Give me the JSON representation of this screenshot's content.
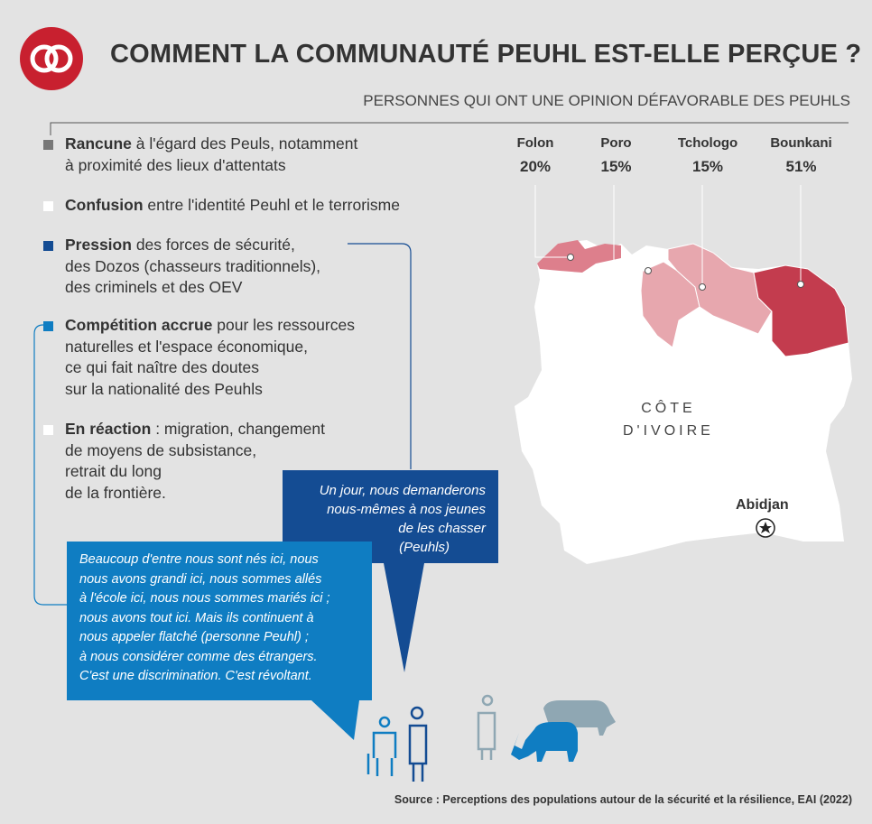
{
  "header": {
    "title": "COMMENT LA COMMUNAUTÉ PEUHL EST-ELLE PERÇUE ?",
    "subtitle": "PERSONNES QUI ONT UNE OPINION DÉFAVORABLE DES PEUHLS"
  },
  "bullets": [
    {
      "bold": "Rancune",
      "rest": "à l'égard des Peuls, notamment",
      "lines": [
        "à proximité des lieux d'attentats"
      ],
      "color": "#777777"
    },
    {
      "bold": "Confusion",
      "rest": "entre l'identité Peuhl et le terrorisme",
      "lines": [],
      "color": "#ffffff"
    },
    {
      "bold": "Pression",
      "rest": "des forces de sécurité,",
      "lines": [
        "des Dozos (chasseurs traditionnels),",
        "des criminels et des OEV"
      ],
      "color": "#144c93"
    },
    {
      "bold": "Compétition accrue",
      "rest": "pour les ressources",
      "lines": [
        "naturelles et l'espace économique,",
        "ce qui fait naître des doutes",
        "sur la nationalité des Peuhls"
      ],
      "color": "#0f7dc2"
    },
    {
      "bold": "En réaction",
      "rest": ": migration, changement",
      "lines": [
        "de moyens de subsistance,",
        "retrait du long",
        "de la frontière."
      ],
      "color": "#ffffff"
    }
  ],
  "regions": [
    {
      "name": "Folon",
      "pct": "20%",
      "color": "#dd7f8c"
    },
    {
      "name": "Poro",
      "pct": "15%",
      "color": "#e7a7ae"
    },
    {
      "name": "Tchologo",
      "pct": "15%",
      "color": "#e7a7ae"
    },
    {
      "name": "Bounkani",
      "pct": "51%",
      "color": "#c33c4e"
    }
  ],
  "map": {
    "country": [
      "CÔTE",
      "D'IVOIRE"
    ],
    "city": "Abidjan",
    "country_fill": "#ffffff"
  },
  "quotes": {
    "quote1": [
      "Un jour, nous demanderons",
      "nous-mêmes à nos jeunes",
      "de les chasser",
      "(Peuhls)"
    ],
    "quote2": [
      "Beaucoup d'entre nous sont nés ici, nous",
      "nous avons grandi ici, nous sommes allés",
      "à l'école ici, nous nous sommes mariés ici ;",
      "nous avons tout ici. Mais ils continuent à",
      "nous appeler flatché (personne Peuhl) ;",
      "à nous considérer comme des étrangers.",
      "C'est une discrimination. C'est révoltant."
    ]
  },
  "source": "Source : Perceptions des populations autour de la sécurité et la résilience, EAI (2022)",
  "colors": {
    "brand_red": "#c8202f",
    "dark_blue": "#144c93",
    "light_blue": "#0f7dc2",
    "grey_animal": "#8fa7b3"
  },
  "icons": [
    "logo-rings-icon",
    "person-icon",
    "cow-icon",
    "star-icon"
  ]
}
